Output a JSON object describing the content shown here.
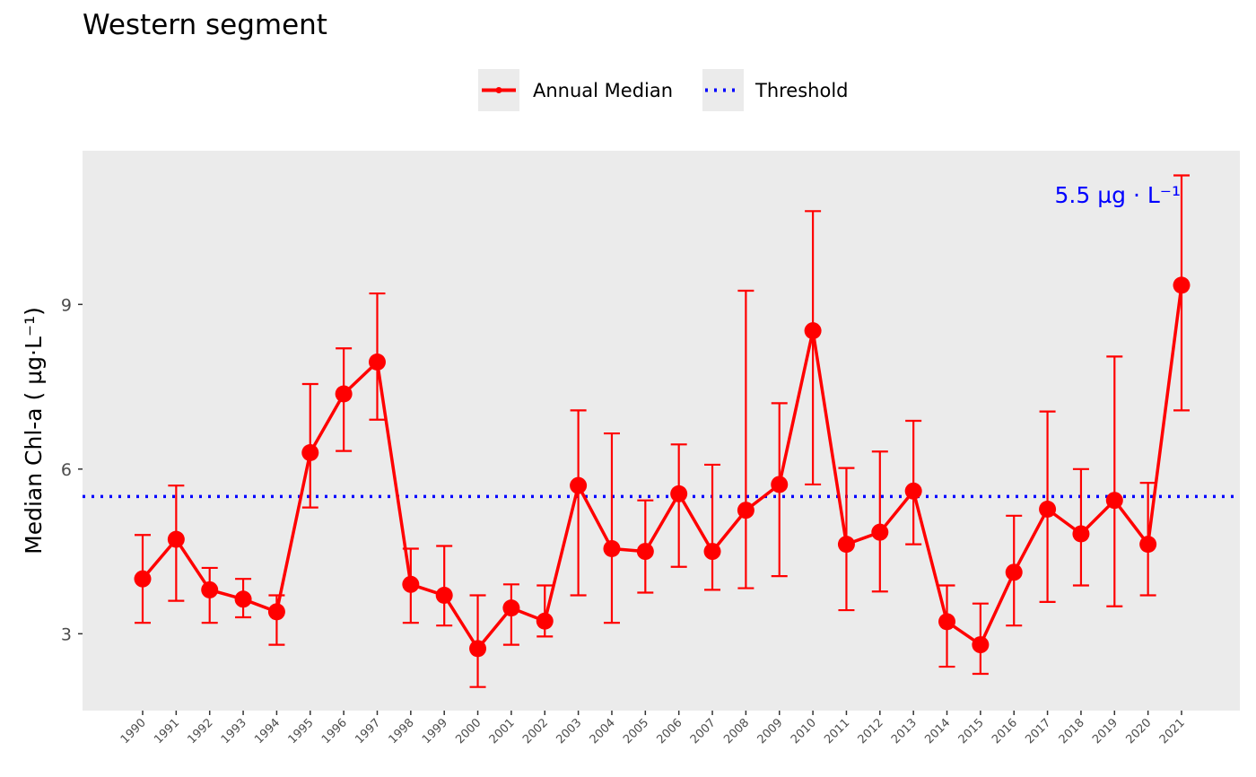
{
  "chart_data": {
    "type": "line",
    "title": "Western segment",
    "ylabel": "Median Chl-a ( µg·L⁻¹)",
    "xlabel": "",
    "ylim": [
      1.6,
      11.8
    ],
    "yticks": [
      3,
      6,
      9
    ],
    "grid": false,
    "legend_position": "top",
    "legend": [
      {
        "label": "Annual Median",
        "style": "solid-line-point",
        "color": "#ff0000"
      },
      {
        "label": "Threshold",
        "style": "dotted",
        "color": "#0000ff"
      }
    ],
    "threshold": {
      "value": 5.5,
      "label": "5.5 µg · L⁻¹",
      "color": "#0000ff"
    },
    "series_color": "#ff0000",
    "panel_bg": "#ebebeb",
    "x": [
      "1990",
      "1991",
      "1992",
      "1993",
      "1994",
      "1995",
      "1996",
      "1997",
      "1998",
      "1999",
      "2000",
      "2001",
      "2002",
      "2003",
      "2004",
      "2005",
      "2006",
      "2007",
      "2008",
      "2009",
      "2010",
      "2011",
      "2012",
      "2013",
      "2014",
      "2015",
      "2016",
      "2017",
      "2018",
      "2019",
      "2020",
      "2021"
    ],
    "series": [
      {
        "values": [
          4.0,
          4.72,
          3.8,
          3.63,
          3.4,
          6.3,
          7.37,
          7.95,
          3.9,
          3.7,
          2.73,
          3.47,
          3.23,
          5.7,
          4.55,
          4.5,
          5.55,
          4.5,
          5.25,
          5.72,
          8.52,
          4.63,
          4.85,
          5.6,
          3.22,
          2.8,
          4.12,
          5.27,
          4.82,
          5.43,
          4.63,
          9.35
        ],
        "lower": [
          3.2,
          3.6,
          3.2,
          3.3,
          2.8,
          5.3,
          6.33,
          6.9,
          3.2,
          3.15,
          2.03,
          2.8,
          2.95,
          3.7,
          3.2,
          3.75,
          4.22,
          3.8,
          3.83,
          4.05,
          5.72,
          3.43,
          3.77,
          4.63,
          2.4,
          2.27,
          3.15,
          3.58,
          3.88,
          3.5,
          3.7,
          7.07
        ],
        "upper": [
          4.8,
          5.7,
          4.2,
          4.0,
          3.7,
          7.55,
          8.2,
          9.2,
          4.55,
          4.6,
          3.7,
          3.9,
          3.88,
          7.07,
          6.65,
          5.43,
          6.45,
          6.08,
          9.25,
          7.2,
          10.7,
          6.02,
          6.32,
          6.88,
          3.88,
          3.55,
          5.15,
          7.05,
          6.0,
          8.05,
          5.75,
          11.35
        ]
      }
    ]
  }
}
